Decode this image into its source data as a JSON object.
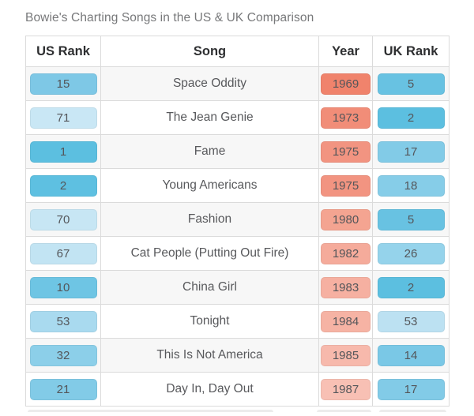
{
  "page": {
    "title": "Bowie's Charting Songs in the US & UK Comparison"
  },
  "colors": {
    "title_text": "#77787a",
    "header_text": "#2e2f31",
    "badge_text": "#54565a",
    "grid_border": "#dbdbdb",
    "row_stripe": "#f7f7f7",
    "blue_scale_dark": "#5cbfe0",
    "blue_scale_light": "#c9e7f5",
    "salmon_scale_dark": "#f0836c",
    "salmon_scale_light": "#f8c0b4"
  },
  "chart_data": {
    "type": "table",
    "title": "Bowie's Charting Songs in the US & UK Comparison",
    "columns": [
      "US Rank",
      "Song",
      "Year",
      "UK Rank"
    ],
    "color_encoding": {
      "rank_badges": "blue, darker = better (lower) chart rank, range 1-71",
      "year_badges": "salmon, darker = earlier year, range 1969-1987"
    },
    "rows": [
      {
        "us_rank": "15",
        "song": "Space Oddity",
        "year": "1969",
        "uk_rank": "5",
        "us_color": "#7ec8e6",
        "year_color": "#f0836c",
        "uk_color": "#68c2e2"
      },
      {
        "us_rank": "71",
        "song": "The Jean Genie",
        "year": "1973",
        "uk_rank": "2",
        "us_color": "#c9e7f5",
        "year_color": "#f18d78",
        "uk_color": "#5cbfe0"
      },
      {
        "us_rank": "1",
        "song": "Fame",
        "year": "1975",
        "uk_rank": "17",
        "us_color": "#5cbfe0",
        "year_color": "#f29481",
        "uk_color": "#82cbe7"
      },
      {
        "us_rank": "2",
        "song": "Young Americans",
        "year": "1975",
        "uk_rank": "18",
        "us_color": "#5ec0e1",
        "year_color": "#f29481",
        "uk_color": "#86cde8"
      },
      {
        "us_rank": "70",
        "song": "Fashion",
        "year": "1980",
        "uk_rank": "5",
        "us_color": "#c7e6f4",
        "year_color": "#f4a491",
        "uk_color": "#68c2e2"
      },
      {
        "us_rank": "67",
        "song": "Cat People (Putting Out Fire)",
        "year": "1982",
        "uk_rank": "26",
        "us_color": "#c2e4f3",
        "year_color": "#f5ab9b",
        "uk_color": "#95d3eb"
      },
      {
        "us_rank": "10",
        "song": "China Girl",
        "year": "1983",
        "uk_rank": "2",
        "us_color": "#6ec5e4",
        "year_color": "#f6b0a1",
        "uk_color": "#5cbfe0"
      },
      {
        "us_rank": "53",
        "song": "Tonight",
        "year": "1984",
        "uk_rank": "53",
        "us_color": "#a9daef",
        "year_color": "#f6b3a4",
        "uk_color": "#bce1f2"
      },
      {
        "us_rank": "32",
        "song": "This Is Not America",
        "year": "1985",
        "uk_rank": "14",
        "us_color": "#8ccfe9",
        "year_color": "#f7b9ac",
        "uk_color": "#7ac8e6"
      },
      {
        "us_rank": "21",
        "song": "Day In, Day Out",
        "year": "1987",
        "uk_rank": "17",
        "us_color": "#82cbe7",
        "year_color": "#f8c0b4",
        "uk_color": "#82cbe7"
      }
    ]
  }
}
